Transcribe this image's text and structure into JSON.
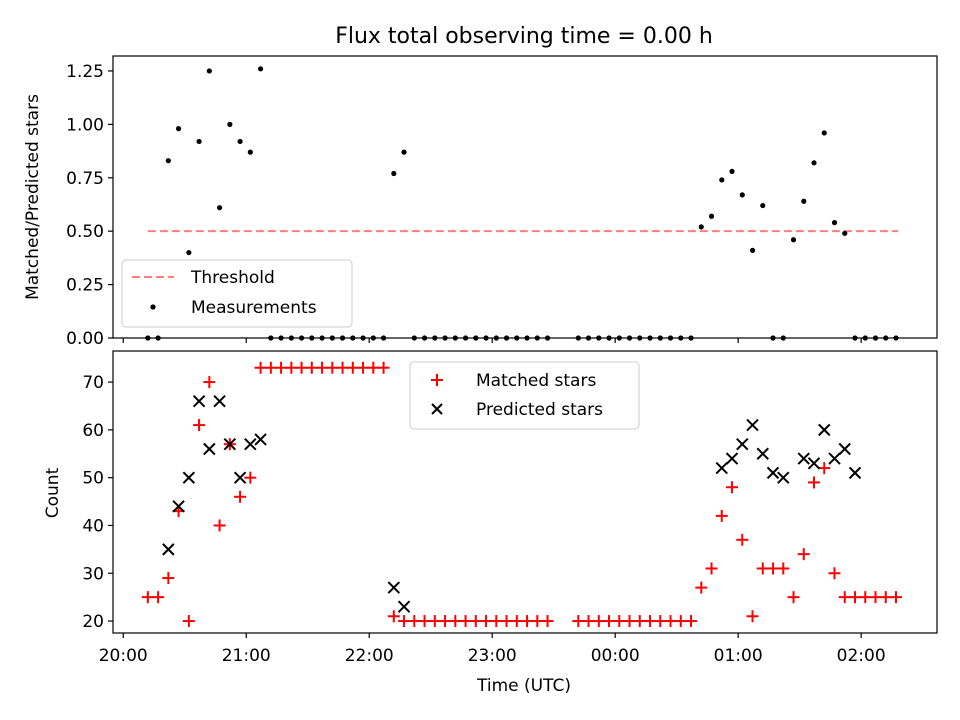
{
  "chart_data": [
    {
      "type": "scatter",
      "title": "Flux total observing time = 0.00 h",
      "xlabel": "",
      "ylabel": "Matched/Predicted stars",
      "xlim": [
        "19:55",
        "02:37"
      ],
      "ylim": [
        0.0,
        1.32
      ],
      "x_ticks": [
        "20:00",
        "21:00",
        "22:00",
        "23:00",
        "00:00",
        "01:00",
        "02:00"
      ],
      "y_ticks": [
        "0.00",
        "0.25",
        "0.50",
        "0.75",
        "1.00",
        "1.25"
      ],
      "grid": false,
      "legend_position": "lower-left",
      "threshold": {
        "name": "Threshold",
        "value": 0.5,
        "x_start": "20:12",
        "x_end": "02:18",
        "color": "#ff7f7f",
        "style": "dashed"
      },
      "measurements": {
        "name": "Measurements",
        "color": "#000000",
        "x": [
          "20:12",
          "20:17",
          "20:22",
          "20:27",
          "20:32",
          "20:37",
          "20:42",
          "20:47",
          "20:52",
          "20:57",
          "21:02",
          "21:07",
          "21:12",
          "21:17",
          "21:22",
          "21:27",
          "21:32",
          "21:37",
          "21:42",
          "21:47",
          "21:52",
          "21:57",
          "22:02",
          "22:07",
          "22:12",
          "22:17",
          "22:22",
          "22:27",
          "22:32",
          "22:37",
          "22:42",
          "22:47",
          "22:52",
          "22:57",
          "23:02",
          "23:07",
          "23:12",
          "23:17",
          "23:22",
          "23:27",
          "23:42",
          "23:47",
          "23:52",
          "23:57",
          "00:02",
          "00:07",
          "00:12",
          "00:17",
          "00:22",
          "00:27",
          "00:32",
          "00:37",
          "00:42",
          "00:47",
          "00:52",
          "00:57",
          "01:02",
          "01:07",
          "01:12",
          "01:17",
          "01:22",
          "01:27",
          "01:32",
          "01:37",
          "01:42",
          "01:47",
          "01:52",
          "01:57",
          "02:02",
          "02:07",
          "02:12",
          "02:17"
        ],
        "y": [
          0,
          0,
          0.83,
          0.98,
          0.4,
          0.92,
          1.25,
          0.61,
          1.0,
          0.92,
          0.87,
          1.26,
          0,
          0,
          0,
          0,
          0,
          0,
          0,
          0,
          0,
          0,
          0,
          0,
          0.77,
          0.87,
          0,
          0,
          0,
          0,
          0,
          0,
          0,
          0,
          0,
          0,
          0,
          0,
          0,
          0,
          0,
          0,
          0,
          0,
          0,
          0,
          0,
          0,
          0,
          0,
          0,
          0,
          0.52,
          0.57,
          0.74,
          0.78,
          0.67,
          0.41,
          0.62,
          0,
          0,
          0.46,
          0.64,
          0.82,
          0.96,
          0.54,
          0.49,
          0,
          0,
          0,
          0,
          0
        ]
      }
    },
    {
      "type": "scatter",
      "title": "",
      "xlabel": "Time (UTC)",
      "ylabel": "Count",
      "xlim": [
        "19:55",
        "02:37"
      ],
      "ylim": [
        17.5,
        76.5
      ],
      "x_ticks": [
        "20:00",
        "21:00",
        "22:00",
        "23:00",
        "00:00",
        "01:00",
        "02:00"
      ],
      "y_ticks": [
        "20",
        "30",
        "40",
        "50",
        "60",
        "70"
      ],
      "grid": false,
      "legend_position": "top-center",
      "series": [
        {
          "name": "Matched stars",
          "marker": "plus",
          "color": "#ff0000",
          "x": [
            "20:12",
            "20:17",
            "20:22",
            "20:27",
            "20:32",
            "20:37",
            "20:42",
            "20:47",
            "20:52",
            "20:57",
            "21:02",
            "21:07",
            "21:12",
            "21:17",
            "21:22",
            "21:27",
            "21:32",
            "21:37",
            "21:42",
            "21:47",
            "21:52",
            "21:57",
            "22:02",
            "22:07",
            "22:12",
            "22:17",
            "22:22",
            "22:27",
            "22:32",
            "22:37",
            "22:42",
            "22:47",
            "22:52",
            "22:57",
            "23:02",
            "23:07",
            "23:12",
            "23:17",
            "23:22",
            "23:27",
            "23:42",
            "23:47",
            "23:52",
            "23:57",
            "00:02",
            "00:07",
            "00:12",
            "00:17",
            "00:22",
            "00:27",
            "00:32",
            "00:37",
            "00:42",
            "00:47",
            "00:52",
            "00:57",
            "01:02",
            "01:07",
            "01:12",
            "01:17",
            "01:22",
            "01:27",
            "01:32",
            "01:37",
            "01:42",
            "01:47",
            "01:52",
            "01:57",
            "02:02",
            "02:07",
            "02:12",
            "02:17"
          ],
          "y": [
            25,
            25,
            29,
            43,
            20,
            61,
            70,
            40,
            57,
            46,
            50,
            73,
            73,
            73,
            73,
            73,
            73,
            73,
            73,
            73,
            73,
            73,
            73,
            73,
            21,
            20,
            20,
            20,
            20,
            20,
            20,
            20,
            20,
            20,
            20,
            20,
            20,
            20,
            20,
            20,
            20,
            20,
            20,
            20,
            20,
            20,
            20,
            20,
            20,
            20,
            20,
            20,
            27,
            31,
            42,
            48,
            37,
            21,
            31,
            31,
            31,
            25,
            34,
            49,
            52,
            30,
            25,
            25,
            25,
            25,
            25,
            25
          ]
        },
        {
          "name": "Predicted stars",
          "marker": "x",
          "color": "#000000",
          "x": [
            "20:22",
            "20:27",
            "20:32",
            "20:37",
            "20:42",
            "20:47",
            "20:52",
            "20:57",
            "21:02",
            "21:07",
            "22:12",
            "22:17",
            "00:52",
            "00:57",
            "01:02",
            "01:07",
            "01:12",
            "01:17",
            "01:22",
            "01:32",
            "01:37",
            "01:42",
            "01:47",
            "01:52",
            "01:57"
          ],
          "y": [
            35,
            44,
            50,
            66,
            56,
            66,
            57,
            50,
            57,
            58,
            27,
            23,
            52,
            54,
            57,
            61,
            55,
            51,
            50,
            54,
            53,
            60,
            54,
            56,
            51
          ]
        }
      ]
    }
  ]
}
